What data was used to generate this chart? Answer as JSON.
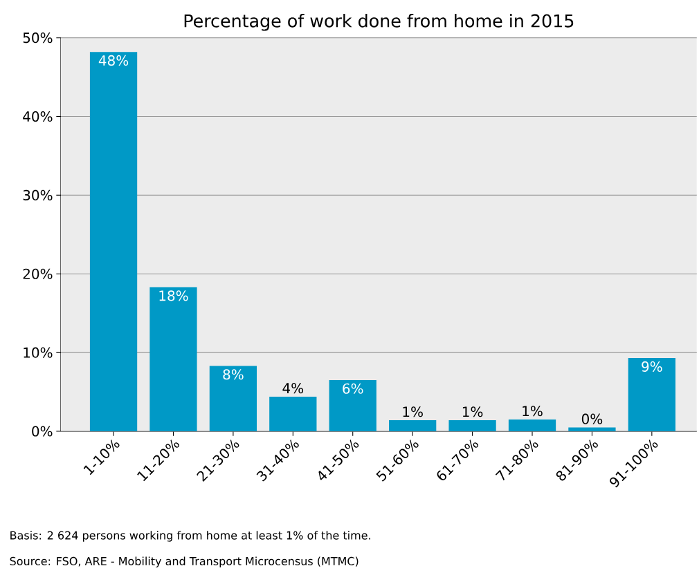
{
  "chart_data": {
    "type": "bar",
    "title": "Percentage of work done from home in 2015",
    "categories": [
      "1-10%",
      "11-20%",
      "21-30%",
      "31-40%",
      "41-50%",
      "51-60%",
      "61-70%",
      "71-80%",
      "81-90%",
      "91-100%"
    ],
    "values": [
      48.2,
      18.3,
      8.3,
      4.4,
      6.5,
      1.4,
      1.4,
      1.49,
      0.49,
      9.3
    ],
    "value_labels": [
      "48%",
      "18%",
      "8%",
      "4%",
      "6%",
      "1%",
      "1%",
      "1%",
      "0%",
      "9%"
    ],
    "color": "#0099c6",
    "ylim": [
      0,
      50
    ],
    "yticks": [
      {
        "value": 0,
        "label": "0%"
      },
      {
        "value": 10,
        "label": "10%"
      },
      {
        "value": 20,
        "label": "20%"
      },
      {
        "value": 30,
        "label": "30%"
      },
      {
        "value": 40,
        "label": "40%"
      },
      {
        "value": 50,
        "label": "50%"
      }
    ],
    "grid": "y",
    "annotations": [
      "Basis: 2 624 persons working from home at least 1% of the time.",
      "Source: FSO, ARE - Mobility and Transport Microcensus (MTMC)"
    ]
  }
}
